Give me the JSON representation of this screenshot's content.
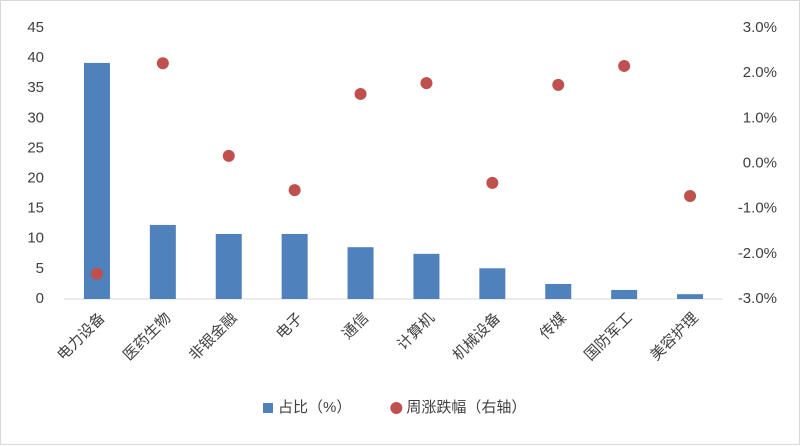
{
  "chart_data": {
    "type": "bar_scatter",
    "categories": [
      "电力设备",
      "医药生物",
      "非银金融",
      "电子",
      "通信",
      "计算机",
      "机械设备",
      "传媒",
      "国防军工",
      "美容护理"
    ],
    "series": [
      {
        "name": "占比（%）",
        "type": "bar",
        "color": "#4f81bd",
        "values": [
          39.2,
          12.3,
          10.8,
          10.8,
          8.6,
          7.5,
          5.1,
          2.5,
          1.5,
          0.8
        ]
      },
      {
        "name": "周涨跌幅（右轴）",
        "type": "scatter",
        "axis": "y2",
        "color": "#c0504d",
        "values": [
          -2.44,
          2.22,
          0.17,
          -0.59,
          1.54,
          1.78,
          -0.43,
          1.74,
          2.16,
          -0.72
        ]
      }
    ],
    "ylim": [
      0,
      45
    ],
    "yticks": [
      0,
      5,
      10,
      15,
      20,
      25,
      30,
      35,
      40,
      45
    ],
    "y2lim": [
      -3,
      3
    ],
    "y2ticks": [
      {
        "value": -3,
        "label": "-3.0%"
      },
      {
        "value": -2,
        "label": "-2.0%"
      },
      {
        "value": -1,
        "label": "-1.0%"
      },
      {
        "value": 0,
        "label": "0.0%"
      },
      {
        "value": 1,
        "label": "1.0%"
      },
      {
        "value": 2,
        "label": "2.0%"
      },
      {
        "value": 3,
        "label": "3.0%"
      }
    ],
    "grid": false,
    "legend": "bottom"
  }
}
